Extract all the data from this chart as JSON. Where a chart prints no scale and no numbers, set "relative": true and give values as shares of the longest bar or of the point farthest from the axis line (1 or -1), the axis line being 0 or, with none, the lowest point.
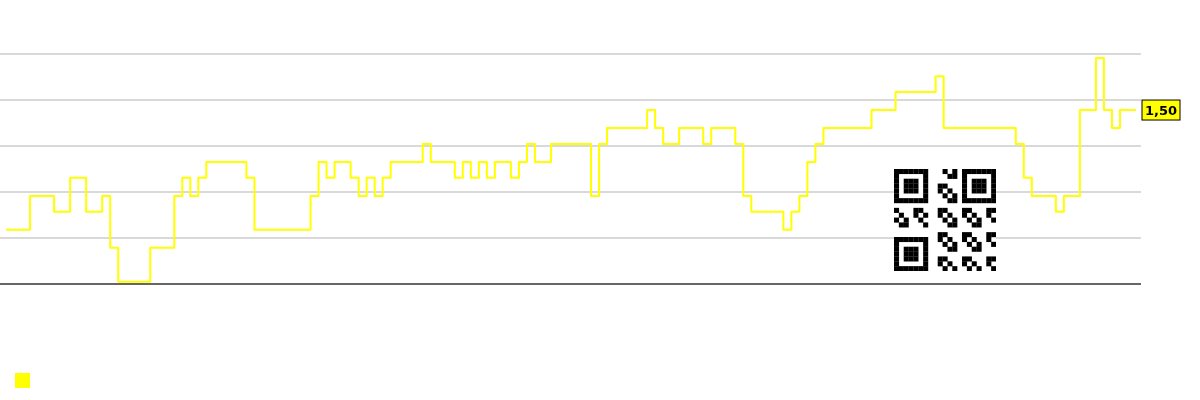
{
  "chart_data": {
    "type": "step",
    "relative": true,
    "grid": "y",
    "annotations": [
      "1,50"
    ],
    "categories": [
      null,
      null,
      null,
      null,
      null,
      null,
      null,
      null,
      null,
      null,
      null,
      null,
      null,
      null,
      null,
      null,
      null,
      null,
      null,
      null,
      null,
      null,
      null,
      null,
      null,
      null,
      null,
      null,
      null,
      null,
      null,
      null,
      null,
      null,
      null,
      null,
      null,
      null,
      null,
      null,
      null,
      null,
      null,
      null,
      null,
      null,
      null,
      null,
      null,
      null,
      null,
      null,
      null,
      null,
      null,
      null,
      null,
      null,
      null,
      null,
      null,
      null,
      null,
      null,
      null,
      null,
      null,
      null,
      null,
      null,
      null,
      null,
      null,
      null,
      null,
      null,
      null,
      null,
      null,
      null,
      null,
      null,
      null,
      null,
      null,
      null,
      null,
      null,
      null,
      null,
      null,
      null,
      null,
      null,
      null,
      null,
      null,
      null,
      null,
      null,
      null,
      null,
      null,
      null,
      null,
      null,
      null,
      null,
      null,
      null,
      null,
      null,
      null,
      null,
      null,
      null,
      null,
      null,
      null,
      null,
      null,
      null,
      null,
      null,
      null,
      null,
      null,
      null,
      null,
      null,
      null,
      null,
      null,
      null,
      null,
      null,
      null,
      null,
      null,
      null,
      null,
      null
    ],
    "series": [
      {
        "color": "#ffff00",
        "values": [
          0.24,
          0.24,
          0.24,
          0.39,
          0.39,
          0.39,
          0.32,
          0.32,
          0.47,
          0.47,
          0.32,
          0.32,
          0.39,
          0.16,
          0.01,
          0.01,
          0.01,
          0.01,
          0.16,
          0.16,
          0.16,
          0.39,
          0.47,
          0.39,
          0.47,
          0.54,
          0.54,
          0.54,
          0.54,
          0.54,
          0.47,
          0.24,
          0.24,
          0.24,
          0.24,
          0.24,
          0.24,
          0.24,
          0.39,
          0.54,
          0.47,
          0.54,
          0.54,
          0.47,
          0.39,
          0.47,
          0.39,
          0.47,
          0.54,
          0.54,
          0.54,
          0.54,
          0.62,
          0.54,
          0.54,
          0.54,
          0.47,
          0.54,
          0.47,
          0.54,
          0.47,
          0.54,
          0.54,
          0.47,
          0.54,
          0.62,
          0.54,
          0.54,
          0.62,
          0.62,
          0.62,
          0.62,
          0.62,
          0.39,
          0.62,
          0.69,
          0.69,
          0.69,
          0.69,
          0.69,
          0.77,
          0.69,
          0.62,
          0.62,
          0.69,
          0.69,
          0.69,
          0.62,
          0.69,
          0.69,
          0.69,
          0.62,
          0.39,
          0.32,
          0.32,
          0.32,
          0.32,
          0.24,
          0.32,
          0.39,
          0.54,
          0.62,
          0.69,
          0.69,
          0.69,
          0.69,
          0.69,
          0.69,
          0.77,
          0.77,
          0.77,
          0.85,
          0.85,
          0.85,
          0.85,
          0.85,
          0.92,
          0.69,
          0.69,
          0.69,
          0.69,
          0.69,
          0.69,
          0.69,
          0.69,
          0.69,
          0.62,
          0.47,
          0.39,
          0.39,
          0.39,
          0.32,
          0.39,
          0.39,
          0.77,
          0.77,
          1,
          0.77,
          0.69,
          0.77,
          0.77,
          0.77
        ]
      }
    ]
  }
}
